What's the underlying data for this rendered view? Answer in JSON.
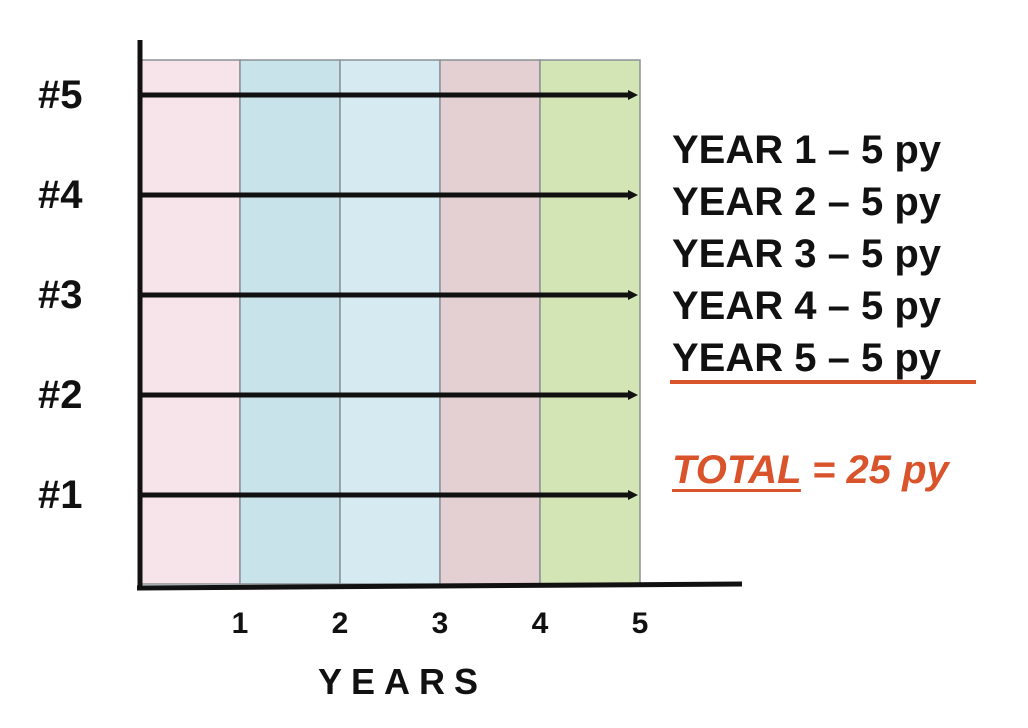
{
  "subjects": [
    "#5",
    "#4",
    "#3",
    "#2",
    "#1"
  ],
  "x_axis": {
    "title": "YEARS",
    "ticks": [
      "1",
      "2",
      "3",
      "4",
      "5"
    ]
  },
  "year_bands": [
    {
      "year": 1,
      "color": "#f7e3ea"
    },
    {
      "year": 2,
      "color": "#c9e3ea"
    },
    {
      "year": 3,
      "color": "#d5ebf1"
    },
    {
      "year": 4,
      "color": "#e4cfd2"
    },
    {
      "year": 5,
      "color": "#d3e5b4"
    }
  ],
  "followup_years_per_subject": 5,
  "year_summary": [
    "YEAR 1 – 5 py",
    "YEAR 2 – 5 py",
    "YEAR 3 – 5 py",
    "YEAR 4 – 5 py",
    "YEAR 5 – 5 py"
  ],
  "total": {
    "word": "TOTAL",
    "rest": " = 25 py"
  },
  "colors": {
    "total_accent": "#d9532b",
    "axis": "#111111",
    "arrow": "#111111",
    "band_divider": "#8a9296"
  }
}
